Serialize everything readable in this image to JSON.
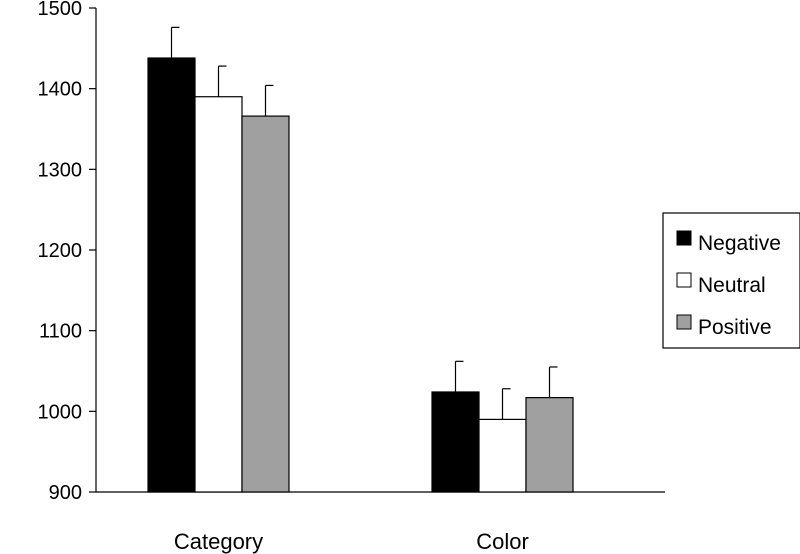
{
  "chart_data": {
    "type": "bar",
    "categories": [
      "Category",
      "Color"
    ],
    "series": [
      {
        "name": "Negative",
        "color": "#000000",
        "values": [
          1438,
          1024
        ],
        "errors": [
          38,
          38
        ]
      },
      {
        "name": "Neutral",
        "color": "#ffffff",
        "values": [
          1390,
          990
        ],
        "errors": [
          38,
          38
        ]
      },
      {
        "name": "Positive",
        "color": "#a0a0a0",
        "values": [
          1366,
          1017
        ],
        "errors": [
          38,
          38
        ]
      }
    ],
    "ylim": [
      900,
      1500
    ],
    "yticks": [
      900,
      1000,
      1100,
      1200,
      1300,
      1400,
      1500
    ],
    "ytick_labels": [
      "900",
      "1000",
      "1100",
      "1200",
      "1300",
      "1400",
      "1500"
    ],
    "grid": false,
    "legend_position": "right"
  }
}
